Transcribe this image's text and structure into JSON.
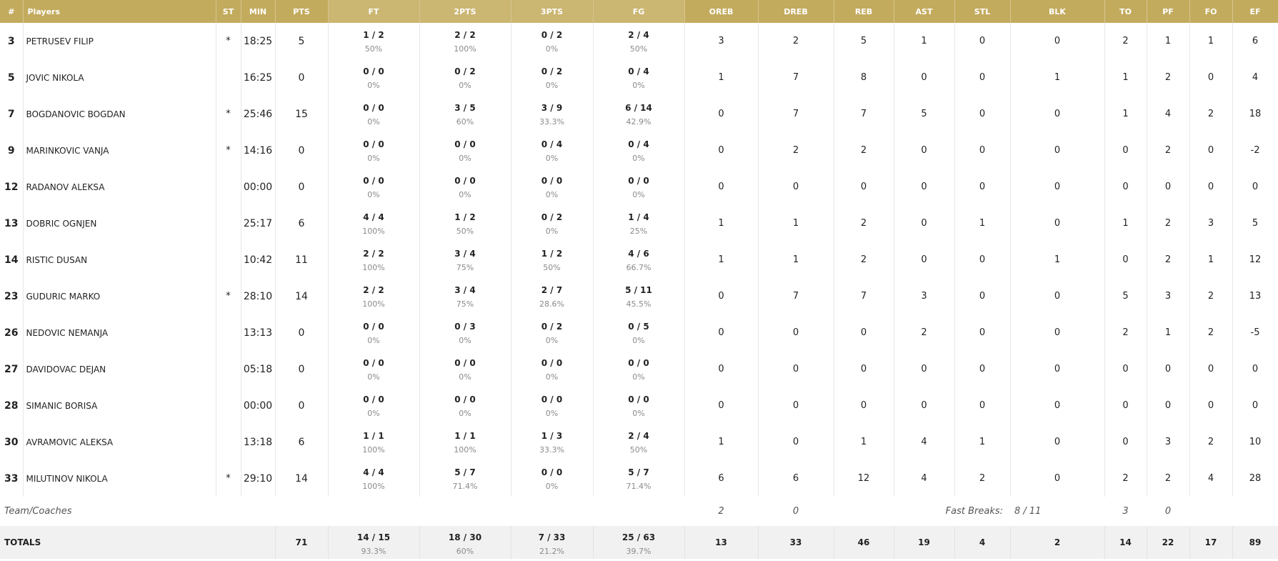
{
  "headers": {
    "num": "#",
    "players": "Players",
    "st": "ST",
    "min": "MIN",
    "pts": "PTS",
    "ft": "FT",
    "p2": "2PTS",
    "p3": "3PTS",
    "fg": "FG",
    "oreb": "OREB",
    "dreb": "DREB",
    "reb": "REB",
    "ast": "AST",
    "stl": "STL",
    "blk": "BLK",
    "to": "TO",
    "pf": "PF",
    "fo": "FO",
    "ef": "EF"
  },
  "players": [
    {
      "num": "3",
      "name": "PETRUSEV FILIP",
      "st": "*",
      "min": "18:25",
      "pts": "5",
      "ft": "1 / 2",
      "ft_pct": "50%",
      "p2": "2 / 2",
      "p2_pct": "100%",
      "p3": "0 / 2",
      "p3_pct": "0%",
      "fg": "2 / 4",
      "fg_pct": "50%",
      "oreb": "3",
      "dreb": "2",
      "reb": "5",
      "ast": "1",
      "stl": "0",
      "blk": "0",
      "to": "2",
      "pf": "1",
      "fo": "1",
      "ef": "6"
    },
    {
      "num": "5",
      "name": "JOVIC NIKOLA",
      "st": "",
      "min": "16:25",
      "pts": "0",
      "ft": "0 / 0",
      "ft_pct": "0%",
      "p2": "0 / 2",
      "p2_pct": "0%",
      "p3": "0 / 2",
      "p3_pct": "0%",
      "fg": "0 / 4",
      "fg_pct": "0%",
      "oreb": "1",
      "dreb": "7",
      "reb": "8",
      "ast": "0",
      "stl": "0",
      "blk": "1",
      "to": "1",
      "pf": "2",
      "fo": "0",
      "ef": "4"
    },
    {
      "num": "7",
      "name": "BOGDANOVIC BOGDAN",
      "st": "*",
      "min": "25:46",
      "pts": "15",
      "ft": "0 / 0",
      "ft_pct": "0%",
      "p2": "3 / 5",
      "p2_pct": "60%",
      "p3": "3 / 9",
      "p3_pct": "33.3%",
      "fg": "6 / 14",
      "fg_pct": "42.9%",
      "oreb": "0",
      "dreb": "7",
      "reb": "7",
      "ast": "5",
      "stl": "0",
      "blk": "0",
      "to": "1",
      "pf": "4",
      "fo": "2",
      "ef": "18"
    },
    {
      "num": "9",
      "name": "MARINKOVIC VANJA",
      "st": "*",
      "min": "14:16",
      "pts": "0",
      "ft": "0 / 0",
      "ft_pct": "0%",
      "p2": "0 / 0",
      "p2_pct": "0%",
      "p3": "0 / 4",
      "p3_pct": "0%",
      "fg": "0 / 4",
      "fg_pct": "0%",
      "oreb": "0",
      "dreb": "2",
      "reb": "2",
      "ast": "0",
      "stl": "0",
      "blk": "0",
      "to": "0",
      "pf": "2",
      "fo": "0",
      "ef": "-2"
    },
    {
      "num": "12",
      "name": "RADANOV ALEKSA",
      "st": "",
      "min": "00:00",
      "pts": "0",
      "ft": "0 / 0",
      "ft_pct": "0%",
      "p2": "0 / 0",
      "p2_pct": "0%",
      "p3": "0 / 0",
      "p3_pct": "0%",
      "fg": "0 / 0",
      "fg_pct": "0%",
      "oreb": "0",
      "dreb": "0",
      "reb": "0",
      "ast": "0",
      "stl": "0",
      "blk": "0",
      "to": "0",
      "pf": "0",
      "fo": "0",
      "ef": "0"
    },
    {
      "num": "13",
      "name": "DOBRIC OGNJEN",
      "st": "",
      "min": "25:17",
      "pts": "6",
      "ft": "4 / 4",
      "ft_pct": "100%",
      "p2": "1 / 2",
      "p2_pct": "50%",
      "p3": "0 / 2",
      "p3_pct": "0%",
      "fg": "1 / 4",
      "fg_pct": "25%",
      "oreb": "1",
      "dreb": "1",
      "reb": "2",
      "ast": "0",
      "stl": "1",
      "blk": "0",
      "to": "1",
      "pf": "2",
      "fo": "3",
      "ef": "5"
    },
    {
      "num": "14",
      "name": "RISTIC DUSAN",
      "st": "",
      "min": "10:42",
      "pts": "11",
      "ft": "2 / 2",
      "ft_pct": "100%",
      "p2": "3 / 4",
      "p2_pct": "75%",
      "p3": "1 / 2",
      "p3_pct": "50%",
      "fg": "4 / 6",
      "fg_pct": "66.7%",
      "oreb": "1",
      "dreb": "1",
      "reb": "2",
      "ast": "0",
      "stl": "0",
      "blk": "1",
      "to": "0",
      "pf": "2",
      "fo": "1",
      "ef": "12"
    },
    {
      "num": "23",
      "name": "GUDURIC MARKO",
      "st": "*",
      "min": "28:10",
      "pts": "14",
      "ft": "2 / 2",
      "ft_pct": "100%",
      "p2": "3 / 4",
      "p2_pct": "75%",
      "p3": "2 / 7",
      "p3_pct": "28.6%",
      "fg": "5 / 11",
      "fg_pct": "45.5%",
      "oreb": "0",
      "dreb": "7",
      "reb": "7",
      "ast": "3",
      "stl": "0",
      "blk": "0",
      "to": "5",
      "pf": "3",
      "fo": "2",
      "ef": "13"
    },
    {
      "num": "26",
      "name": "NEDOVIC NEMANJA",
      "st": "",
      "min": "13:13",
      "pts": "0",
      "ft": "0 / 0",
      "ft_pct": "0%",
      "p2": "0 / 3",
      "p2_pct": "0%",
      "p3": "0 / 2",
      "p3_pct": "0%",
      "fg": "0 / 5",
      "fg_pct": "0%",
      "oreb": "0",
      "dreb": "0",
      "reb": "0",
      "ast": "2",
      "stl": "0",
      "blk": "0",
      "to": "2",
      "pf": "1",
      "fo": "2",
      "ef": "-5"
    },
    {
      "num": "27",
      "name": "DAVIDOVAC DEJAN",
      "st": "",
      "min": "05:18",
      "pts": "0",
      "ft": "0 / 0",
      "ft_pct": "0%",
      "p2": "0 / 0",
      "p2_pct": "0%",
      "p3": "0 / 0",
      "p3_pct": "0%",
      "fg": "0 / 0",
      "fg_pct": "0%",
      "oreb": "0",
      "dreb": "0",
      "reb": "0",
      "ast": "0",
      "stl": "0",
      "blk": "0",
      "to": "0",
      "pf": "0",
      "fo": "0",
      "ef": "0"
    },
    {
      "num": "28",
      "name": "SIMANIC BORISA",
      "st": "",
      "min": "00:00",
      "pts": "0",
      "ft": "0 / 0",
      "ft_pct": "0%",
      "p2": "0 / 0",
      "p2_pct": "0%",
      "p3": "0 / 0",
      "p3_pct": "0%",
      "fg": "0 / 0",
      "fg_pct": "0%",
      "oreb": "0",
      "dreb": "0",
      "reb": "0",
      "ast": "0",
      "stl": "0",
      "blk": "0",
      "to": "0",
      "pf": "0",
      "fo": "0",
      "ef": "0"
    },
    {
      "num": "30",
      "name": "AVRAMOVIC ALEKSA",
      "st": "",
      "min": "13:18",
      "pts": "6",
      "ft": "1 / 1",
      "ft_pct": "100%",
      "p2": "1 / 1",
      "p2_pct": "100%",
      "p3": "1 / 3",
      "p3_pct": "33.3%",
      "fg": "2 / 4",
      "fg_pct": "50%",
      "oreb": "1",
      "dreb": "0",
      "reb": "1",
      "ast": "4",
      "stl": "1",
      "blk": "0",
      "to": "0",
      "pf": "3",
      "fo": "2",
      "ef": "10"
    },
    {
      "num": "33",
      "name": "MILUTINOV NIKOLA",
      "st": "*",
      "min": "29:10",
      "pts": "14",
      "ft": "4 / 4",
      "ft_pct": "100%",
      "p2": "5 / 7",
      "p2_pct": "71.4%",
      "p3": "0 / 0",
      "p3_pct": "0%",
      "fg": "5 / 7",
      "fg_pct": "71.4%",
      "oreb": "6",
      "dreb": "6",
      "reb": "12",
      "ast": "4",
      "stl": "2",
      "blk": "0",
      "to": "2",
      "pf": "2",
      "fo": "4",
      "ef": "28"
    }
  ],
  "team": {
    "label": "Team/Coaches",
    "oreb": "2",
    "dreb": "0",
    "fast_breaks_label": "Fast Breaks:",
    "fast_breaks": "8 / 11",
    "to": "3",
    "pf": "0"
  },
  "totals": {
    "label": "TOTALS",
    "pts": "71",
    "ft": "14 / 15",
    "ft_pct": "93.3%",
    "p2": "18 / 30",
    "p2_pct": "60%",
    "p3": "7 / 33",
    "p3_pct": "21.2%",
    "fg": "25 / 63",
    "fg_pct": "39.7%",
    "oreb": "13",
    "dreb": "33",
    "reb": "46",
    "ast": "19",
    "stl": "4",
    "blk": "2",
    "to": "14",
    "pf": "22",
    "fo": "17",
    "ef": "89"
  },
  "colors": {
    "header_bg": "#c3ab5e",
    "header_alt_bg": "#cbb672",
    "totals_bg": "#f1f1f1"
  }
}
